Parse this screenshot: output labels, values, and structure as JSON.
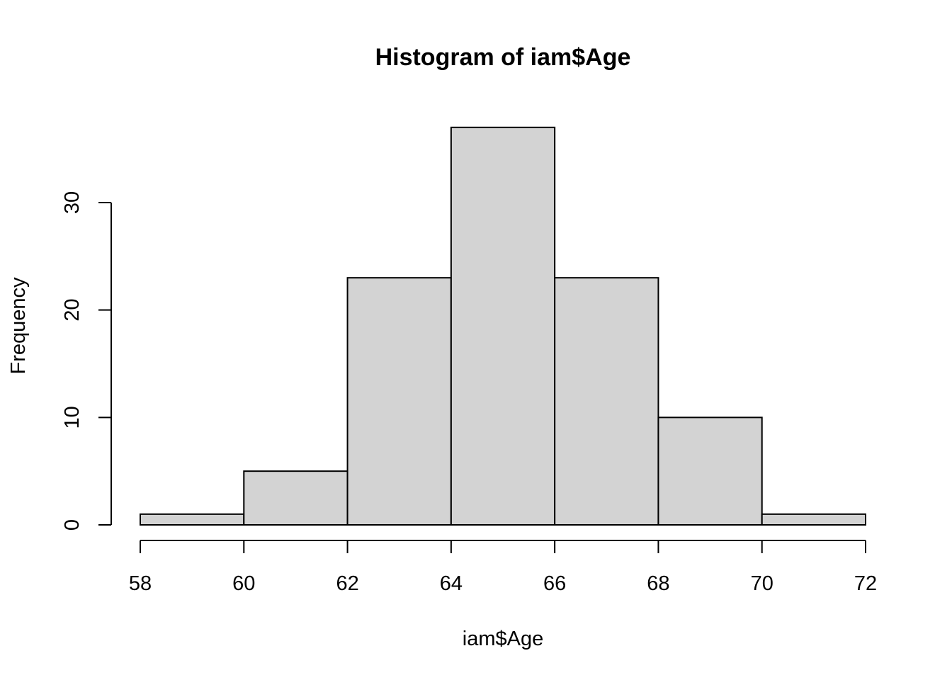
{
  "chart_data": {
    "type": "bar",
    "title": "Histogram of iam$Age",
    "xlabel": "iam$Age",
    "ylabel": "Frequency",
    "bin_edges": [
      58,
      60,
      62,
      64,
      66,
      68,
      70,
      72
    ],
    "values": [
      1,
      5,
      23,
      37,
      23,
      10,
      1
    ],
    "xlim": [
      58,
      72
    ],
    "ylim": [
      0,
      37
    ],
    "x_ticks": [
      "58",
      "60",
      "62",
      "64",
      "66",
      "68",
      "70",
      "72"
    ],
    "y_ticks": [
      "0",
      "10",
      "20",
      "30"
    ],
    "bar_color": "#d3d3d3",
    "border_color": "#000000",
    "grid": false
  }
}
